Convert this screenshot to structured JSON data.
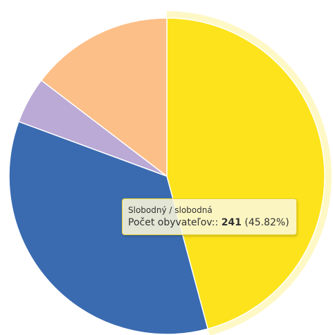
{
  "chart_data": {
    "type": "pie",
    "series": [
      {
        "name": "Počet obyvateľov:",
        "slices": [
          {
            "label": "Slobodný / slobodná",
            "value": 241,
            "percent": 45.82,
            "color": "#FDE31B",
            "highlighted": true
          },
          {
            "label": "",
            "value": 183,
            "percent": 34.79,
            "color": "#3A6BB0"
          },
          {
            "label": "",
            "value": 25,
            "percent": 4.75,
            "color": "#BBA9D6"
          },
          {
            "label": "",
            "value": 77,
            "percent": 14.64,
            "color": "#FDBF88"
          }
        ]
      }
    ],
    "start_angle_deg": 0,
    "direction": "clockwise"
  },
  "tooltip": {
    "category": "Slobodný / slobodná",
    "series_label": "Počet obyvateľov::",
    "value": "241",
    "percent": "(45.82%)"
  }
}
